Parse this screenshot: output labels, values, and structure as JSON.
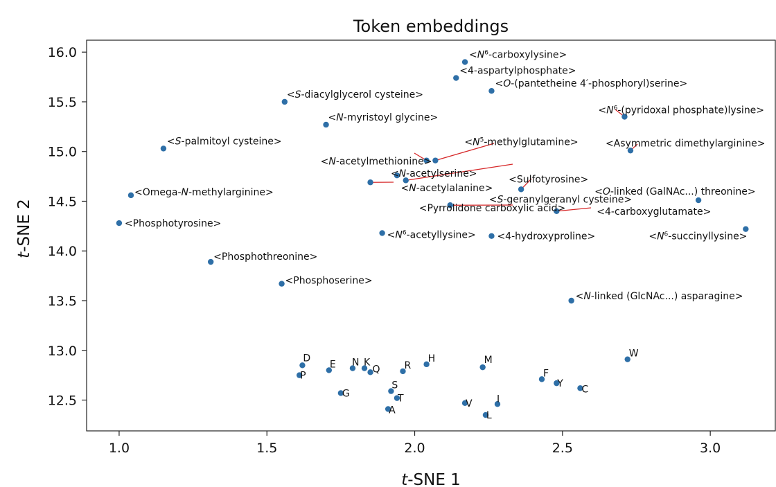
{
  "chart_data": {
    "type": "scatter",
    "title": "Token embeddings",
    "xlabel": "t-SNE 1",
    "ylabel": "t-SNE 2",
    "xlim": [
      0.89,
      3.22
    ],
    "ylim": [
      12.19,
      16.12
    ],
    "xticks": [
      "1.0",
      "1.5",
      "2.0",
      "2.5",
      "3.0"
    ],
    "yticks": [
      "12.5",
      "13.0",
      "13.5",
      "14.0",
      "14.5",
      "15.0",
      "15.5",
      "16.0"
    ],
    "marker_color": "#2e6fa7",
    "leader_color": "#d62728",
    "points": [
      {
        "label": "<N6-carboxylysine>",
        "x": 2.17,
        "y": 15.9
      },
      {
        "label": "<4-aspartylphosphate>",
        "x": 2.14,
        "y": 15.74
      },
      {
        "label": "<O-(pantetheine 4′-phosphoryl)serine>",
        "x": 2.26,
        "y": 15.61
      },
      {
        "label": "<S-diacylglycerol cysteine>",
        "x": 1.56,
        "y": 15.5
      },
      {
        "label": "<N-myristoyl glycine>",
        "x": 1.7,
        "y": 15.27
      },
      {
        "label": "<N6-(pyridoxal phosphate)lysine>",
        "x": 2.71,
        "y": 15.35
      },
      {
        "label": "<S-palmitoyl cysteine>",
        "x": 1.15,
        "y": 15.03
      },
      {
        "label": "<N5-methylglutamine>",
        "x": 2.07,
        "y": 14.91
      },
      {
        "label": "<Asymmetric dimethylarginine>",
        "x": 2.73,
        "y": 15.01
      },
      {
        "label": "<N-acetylmethionine>",
        "x": 2.04,
        "y": 14.91
      },
      {
        "label": "<S-geranylgeranyl cysteine>",
        "x": 1.97,
        "y": 14.71
      },
      {
        "label": "<N-acetylserine>",
        "x": 1.94,
        "y": 14.76
      },
      {
        "label": "<Sulfotyrosine>",
        "x": 2.36,
        "y": 14.62
      },
      {
        "label": "<N-acetylalanine>",
        "x": 1.85,
        "y": 14.69
      },
      {
        "label": "<Omega-N-methylarginine>",
        "x": 1.04,
        "y": 14.56
      },
      {
        "label": "<O-linked (GalNAc...) threonine>",
        "x": 2.96,
        "y": 14.51
      },
      {
        "label": "<Pyrrolidone carboxylic acid>",
        "x": 2.12,
        "y": 14.46
      },
      {
        "label": "<4-carboxyglutamate>",
        "x": 2.48,
        "y": 14.4
      },
      {
        "label": "<Phosphotyrosine>",
        "x": 1.0,
        "y": 14.28
      },
      {
        "label": "<N6-acetyllysine>",
        "x": 1.89,
        "y": 14.18
      },
      {
        "label": "<4-hydroxyproline>",
        "x": 2.26,
        "y": 14.15
      },
      {
        "label": "<N6-succinyllysine>",
        "x": 3.12,
        "y": 14.22
      },
      {
        "label": "<Phosphothreonine>",
        "x": 1.31,
        "y": 13.89
      },
      {
        "label": "<Phosphoserine>",
        "x": 1.55,
        "y": 13.67
      },
      {
        "label": "<N-linked (GlcNAc...) asparagine>",
        "x": 2.53,
        "y": 13.5
      },
      {
        "label": "D",
        "x": 1.62,
        "y": 12.85
      },
      {
        "label": "P",
        "x": 1.61,
        "y": 12.75
      },
      {
        "label": "E",
        "x": 1.71,
        "y": 12.8
      },
      {
        "label": "N",
        "x": 1.79,
        "y": 12.82
      },
      {
        "label": "K",
        "x": 1.83,
        "y": 12.82
      },
      {
        "label": "Q",
        "x": 1.85,
        "y": 12.78
      },
      {
        "label": "R",
        "x": 1.96,
        "y": 12.79
      },
      {
        "label": "H",
        "x": 2.04,
        "y": 12.86
      },
      {
        "label": "M",
        "x": 2.23,
        "y": 12.83
      },
      {
        "label": "W",
        "x": 2.72,
        "y": 12.91
      },
      {
        "label": "F",
        "x": 2.43,
        "y": 12.71
      },
      {
        "label": "Y",
        "x": 2.48,
        "y": 12.67
      },
      {
        "label": "C",
        "x": 2.56,
        "y": 12.62
      },
      {
        "label": "G",
        "x": 1.75,
        "y": 12.57
      },
      {
        "label": "S",
        "x": 1.92,
        "y": 12.59
      },
      {
        "label": "T",
        "x": 1.94,
        "y": 12.52
      },
      {
        "label": "A",
        "x": 1.91,
        "y": 12.41
      },
      {
        "label": "V",
        "x": 2.17,
        "y": 12.47
      },
      {
        "label": "I",
        "x": 2.28,
        "y": 12.46
      },
      {
        "label": "L",
        "x": 2.24,
        "y": 12.35
      }
    ]
  }
}
